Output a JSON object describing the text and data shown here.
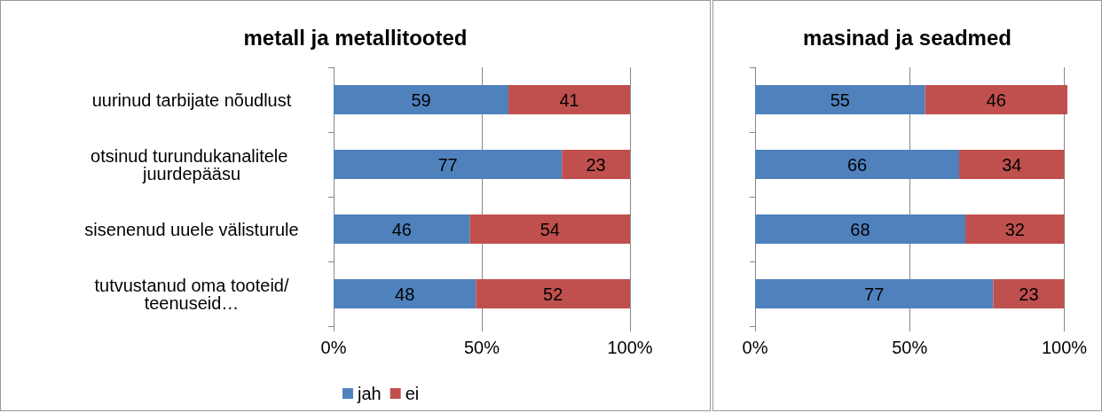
{
  "chart_data": [
    {
      "type": "bar",
      "title": "metall ja metallitooted",
      "orientation": "horizontal",
      "stacked": true,
      "categories": [
        "uurinud tarbijate nõudlust",
        "otsinud turundukanalitele juurdepääsu",
        "sisenenud uuele välisturule",
        "tutvustanud oma tooteid/teenuseid…"
      ],
      "series": [
        {
          "name": "jah",
          "color": "#4f81bd",
          "values": [
            59,
            77,
            46,
            48
          ]
        },
        {
          "name": "ei",
          "color": "#c0504d",
          "values": [
            41,
            23,
            54,
            52
          ]
        }
      ],
      "xlim": [
        0,
        100
      ],
      "xticks": [
        {
          "value": 0,
          "label": "0%"
        },
        {
          "value": 50,
          "label": "50%"
        },
        {
          "value": 100,
          "label": "100%"
        }
      ],
      "grid": "x",
      "legend": "bottom",
      "data_labels": true
    },
    {
      "type": "bar",
      "title": "masinad ja seadmed",
      "orientation": "horizontal",
      "stacked": true,
      "categories": [
        null,
        null,
        null,
        null
      ],
      "series": [
        {
          "color": "#4f81bd",
          "values": [
            55,
            66,
            68,
            77
          ]
        },
        {
          "color": "#c0504d",
          "values": [
            46,
            34,
            32,
            23
          ]
        }
      ],
      "xlim": [
        0,
        101
      ],
      "xticks": [
        {
          "value": 0,
          "label": "0%"
        },
        {
          "value": 50,
          "label": "50%"
        },
        {
          "value": 100,
          "label": "100%"
        }
      ],
      "grid": "x",
      "tick_labels": "x",
      "legend": false,
      "data_labels": true
    }
  ]
}
